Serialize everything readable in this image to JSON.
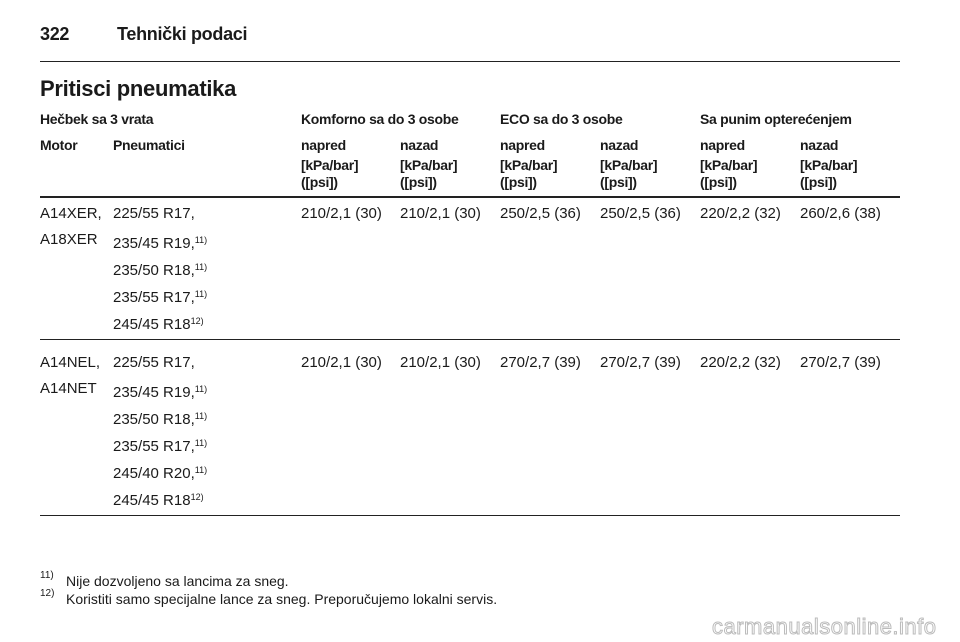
{
  "header": {
    "page_number": "322",
    "title": "Tehnički podaci"
  },
  "section_title": "Pritisci pneumatika",
  "table": {
    "caption": "Hečbek sa 3 vrata",
    "groups": [
      "Komforno sa do 3 osobe",
      "ECO sa do 3 osobe",
      "Sa punim opterećenjem"
    ],
    "columns": [
      "Motor",
      "Pneumatici",
      "napred",
      "nazad",
      "napred",
      "nazad",
      "napred",
      "nazad"
    ],
    "units": [
      [
        "[kPa/bar]",
        "([psi])"
      ],
      [
        "[kPa/bar]",
        "([psi])"
      ],
      [
        "[kPa/bar]",
        "([psi])"
      ],
      [
        "[kPa/bar]",
        "([psi])"
      ],
      [
        "[kPa/bar]",
        "([psi])"
      ],
      [
        "[kPa/bar]",
        "([psi])"
      ]
    ],
    "rows": [
      {
        "motor": [
          "A14XER,",
          "A18XER"
        ],
        "tires": [
          {
            "text": "225/55 R17,"
          },
          {
            "text": "235/45 R19,",
            "note": "11)"
          },
          {
            "text": "235/50 R18,",
            "note": "11)"
          },
          {
            "text": "235/55 R17,",
            "note": "11)"
          },
          {
            "text": "245/45 R18",
            "note": "12)"
          }
        ],
        "values": [
          "210/2,1 (30)",
          "210/2,1 (30)",
          "250/2,5 (36)",
          "250/2,5 (36)",
          "220/2,2 (32)",
          "260/2,6 (38)"
        ]
      },
      {
        "motor": [
          "A14NEL,",
          "A14NET"
        ],
        "tires": [
          {
            "text": "225/55 R17,"
          },
          {
            "text": "235/45 R19,",
            "note": "11)"
          },
          {
            "text": "235/50 R18,",
            "note": "11)"
          },
          {
            "text": "235/55 R17,",
            "note": "11)"
          },
          {
            "text": "245/40 R20,",
            "note": "11)"
          },
          {
            "text": "245/45 R18",
            "note": "12)"
          }
        ],
        "values": [
          "210/2,1 (30)",
          "210/2,1 (30)",
          "270/2,7 (39)",
          "270/2,7 (39)",
          "220/2,2 (32)",
          "270/2,7 (39)"
        ]
      }
    ]
  },
  "footnotes": [
    {
      "mark": "11)",
      "text": "Nije dozvoljeno sa lancima za sneg."
    },
    {
      "mark": "12)",
      "text": "Koristiti samo specijalne lance za sneg. Preporučujemo lokalni servis."
    }
  ],
  "watermark": "carmanualsonline.info"
}
